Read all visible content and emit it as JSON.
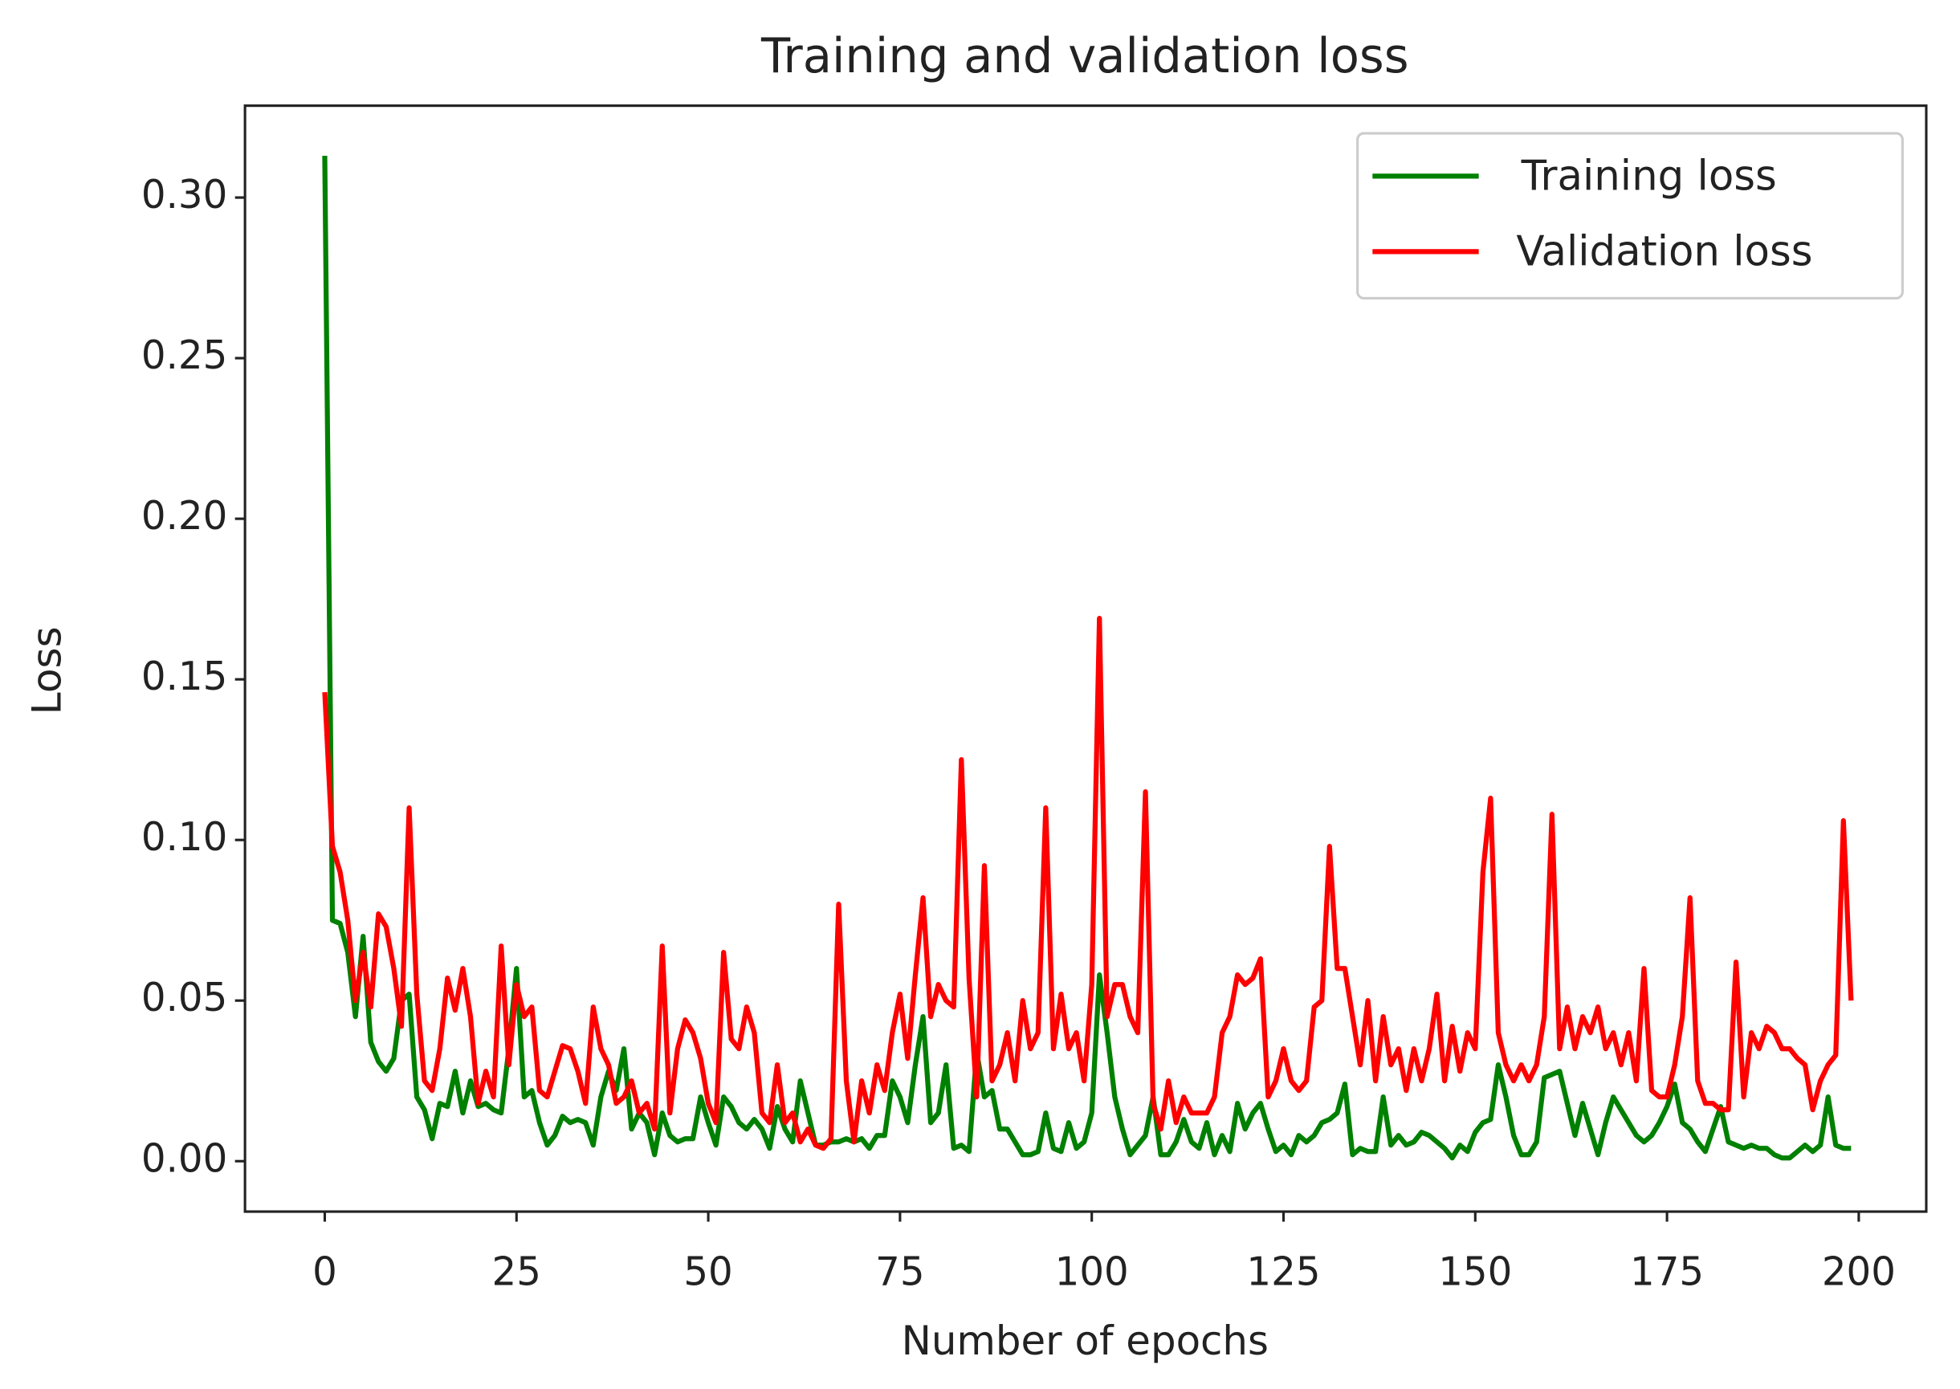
{
  "chart_data": {
    "type": "line",
    "title": "Training and validation loss",
    "x_label": "Number of epochs",
    "y_label": "Loss",
    "x": [
      0,
      1,
      2,
      3,
      4,
      5,
      6,
      7,
      8,
      9,
      10,
      11,
      12,
      13,
      14,
      15,
      16,
      17,
      18,
      19,
      20,
      21,
      22,
      23,
      24,
      25,
      26,
      27,
      28,
      29,
      30,
      31,
      32,
      33,
      34,
      35,
      36,
      37,
      38,
      39,
      40,
      41,
      42,
      43,
      44,
      45,
      46,
      47,
      48,
      49,
      50,
      51,
      52,
      53,
      54,
      55,
      56,
      57,
      58,
      59,
      60,
      61,
      62,
      63,
      64,
      65,
      66,
      67,
      68,
      69,
      70,
      71,
      72,
      73,
      74,
      75,
      76,
      77,
      78,
      79,
      80,
      81,
      82,
      83,
      84,
      85,
      86,
      87,
      88,
      89,
      90,
      91,
      92,
      93,
      94,
      95,
      96,
      97,
      98,
      99,
      100,
      101,
      102,
      103,
      104,
      105,
      106,
      107,
      108,
      109,
      110,
      111,
      112,
      113,
      114,
      115,
      116,
      117,
      118,
      119,
      120,
      121,
      122,
      123,
      124,
      125,
      126,
      127,
      128,
      129,
      130,
      131,
      132,
      133,
      134,
      135,
      136,
      137,
      138,
      139,
      140,
      141,
      142,
      143,
      144,
      145,
      146,
      147,
      148,
      149,
      150,
      151,
      152,
      153,
      154,
      155,
      156,
      157,
      158,
      159,
      160,
      161,
      162,
      163,
      164,
      165,
      166,
      167,
      168,
      169,
      170,
      171,
      172,
      173,
      174,
      175,
      176,
      177,
      178,
      179,
      180,
      181,
      182,
      183,
      184,
      185,
      186,
      187,
      188,
      189,
      190,
      191,
      192,
      193,
      194,
      195,
      196,
      197,
      198,
      199
    ],
    "series": [
      {
        "name": "Training loss",
        "color": "#008000",
        "values": [
          0.313,
          0.075,
          0.074,
          0.065,
          0.045,
          0.07,
          0.037,
          0.031,
          0.028,
          0.032,
          0.05,
          0.052,
          0.02,
          0.016,
          0.007,
          0.018,
          0.017,
          0.028,
          0.015,
          0.025,
          0.017,
          0.018,
          0.016,
          0.015,
          0.035,
          0.06,
          0.02,
          0.022,
          0.012,
          0.005,
          0.008,
          0.014,
          0.012,
          0.013,
          0.012,
          0.005,
          0.02,
          0.028,
          0.022,
          0.035,
          0.01,
          0.015,
          0.012,
          0.002,
          0.015,
          0.008,
          0.006,
          0.007,
          0.007,
          0.02,
          0.012,
          0.005,
          0.02,
          0.017,
          0.012,
          0.01,
          0.013,
          0.01,
          0.004,
          0.017,
          0.01,
          0.006,
          0.025,
          0.015,
          0.005,
          0.005,
          0.006,
          0.006,
          0.007,
          0.006,
          0.007,
          0.004,
          0.008,
          0.008,
          0.025,
          0.02,
          0.012,
          0.03,
          0.045,
          0.012,
          0.015,
          0.03,
          0.004,
          0.005,
          0.003,
          0.034,
          0.02,
          0.022,
          0.01,
          0.01,
          0.006,
          0.002,
          0.002,
          0.003,
          0.015,
          0.004,
          0.003,
          0.012,
          0.004,
          0.006,
          0.015,
          0.058,
          0.04,
          0.02,
          0.01,
          0.002,
          0.005,
          0.008,
          0.02,
          0.002,
          0.002,
          0.006,
          0.013,
          0.006,
          0.004,
          0.012,
          0.002,
          0.008,
          0.003,
          0.018,
          0.01,
          0.015,
          0.018,
          0.01,
          0.003,
          0.005,
          0.002,
          0.008,
          0.006,
          0.008,
          0.012,
          0.013,
          0.015,
          0.024,
          0.002,
          0.004,
          0.003,
          0.003,
          0.02,
          0.005,
          0.008,
          0.005,
          0.006,
          0.009,
          0.008,
          0.006,
          0.004,
          0.001,
          0.005,
          0.003,
          0.009,
          0.012,
          0.013,
          0.03,
          0.02,
          0.008,
          0.002,
          0.002,
          0.006,
          0.026,
          0.027,
          0.028,
          0.018,
          0.008,
          0.018,
          0.01,
          0.002,
          0.012,
          0.02,
          0.016,
          0.012,
          0.008,
          0.006,
          0.008,
          0.012,
          0.017,
          0.024,
          0.012,
          0.01,
          0.006,
          0.003,
          0.01,
          0.017,
          0.006,
          0.005,
          0.004,
          0.005,
          0.004,
          0.004,
          0.002,
          0.001,
          0.001,
          0.003,
          0.005,
          0.003,
          0.005,
          0.02,
          0.005,
          0.004,
          0.004
        ]
      },
      {
        "name": "Validation loss",
        "color": "#ff0000",
        "values": [
          0.146,
          0.098,
          0.09,
          0.075,
          0.05,
          0.065,
          0.048,
          0.077,
          0.073,
          0.06,
          0.042,
          0.11,
          0.052,
          0.025,
          0.022,
          0.035,
          0.057,
          0.047,
          0.06,
          0.045,
          0.018,
          0.028,
          0.02,
          0.067,
          0.03,
          0.055,
          0.045,
          0.048,
          0.022,
          0.02,
          0.028,
          0.036,
          0.035,
          0.028,
          0.018,
          0.048,
          0.035,
          0.03,
          0.018,
          0.02,
          0.025,
          0.015,
          0.018,
          0.01,
          0.067,
          0.015,
          0.035,
          0.044,
          0.04,
          0.032,
          0.018,
          0.012,
          0.065,
          0.038,
          0.035,
          0.048,
          0.04,
          0.015,
          0.012,
          0.03,
          0.012,
          0.015,
          0.006,
          0.01,
          0.005,
          0.004,
          0.007,
          0.08,
          0.025,
          0.006,
          0.025,
          0.015,
          0.03,
          0.022,
          0.04,
          0.052,
          0.032,
          0.058,
          0.082,
          0.045,
          0.055,
          0.05,
          0.048,
          0.125,
          0.057,
          0.02,
          0.092,
          0.025,
          0.03,
          0.04,
          0.025,
          0.05,
          0.035,
          0.04,
          0.11,
          0.035,
          0.052,
          0.035,
          0.04,
          0.025,
          0.055,
          0.169,
          0.045,
          0.055,
          0.055,
          0.045,
          0.04,
          0.115,
          0.018,
          0.01,
          0.025,
          0.012,
          0.02,
          0.015,
          0.015,
          0.015,
          0.02,
          0.04,
          0.045,
          0.058,
          0.055,
          0.057,
          0.063,
          0.02,
          0.025,
          0.035,
          0.025,
          0.022,
          0.025,
          0.048,
          0.05,
          0.098,
          0.06,
          0.06,
          0.045,
          0.03,
          0.05,
          0.025,
          0.045,
          0.03,
          0.035,
          0.022,
          0.035,
          0.025,
          0.035,
          0.052,
          0.025,
          0.042,
          0.028,
          0.04,
          0.035,
          0.09,
          0.113,
          0.04,
          0.03,
          0.025,
          0.03,
          0.025,
          0.03,
          0.045,
          0.108,
          0.035,
          0.048,
          0.035,
          0.045,
          0.04,
          0.048,
          0.035,
          0.04,
          0.03,
          0.04,
          0.025,
          0.06,
          0.022,
          0.02,
          0.02,
          0.03,
          0.045,
          0.082,
          0.025,
          0.018,
          0.018,
          0.016,
          0.016,
          0.062,
          0.02,
          0.04,
          0.035,
          0.042,
          0.04,
          0.035,
          0.035,
          0.032,
          0.03,
          0.016,
          0.025,
          0.03,
          0.033,
          0.106,
          0.05
        ]
      }
    ],
    "xlim": [
      -10.4,
      208.8
    ],
    "ylim": [
      -0.0157,
      0.3286
    ],
    "xticks": [
      0,
      25,
      50,
      75,
      100,
      125,
      150,
      175,
      200
    ],
    "yticks": [
      {
        "value": 0,
        "label": "0.00"
      },
      {
        "value": 0.05,
        "label": "0.05"
      },
      {
        "value": 0.1,
        "label": "0.10"
      },
      {
        "value": 0.15,
        "label": "0.15"
      },
      {
        "value": 0.2,
        "label": "0.20"
      },
      {
        "value": 0.25,
        "label": "0.25"
      },
      {
        "value": 0.3,
        "label": "0.30"
      }
    ],
    "legend": "upper right",
    "grid": false
  }
}
